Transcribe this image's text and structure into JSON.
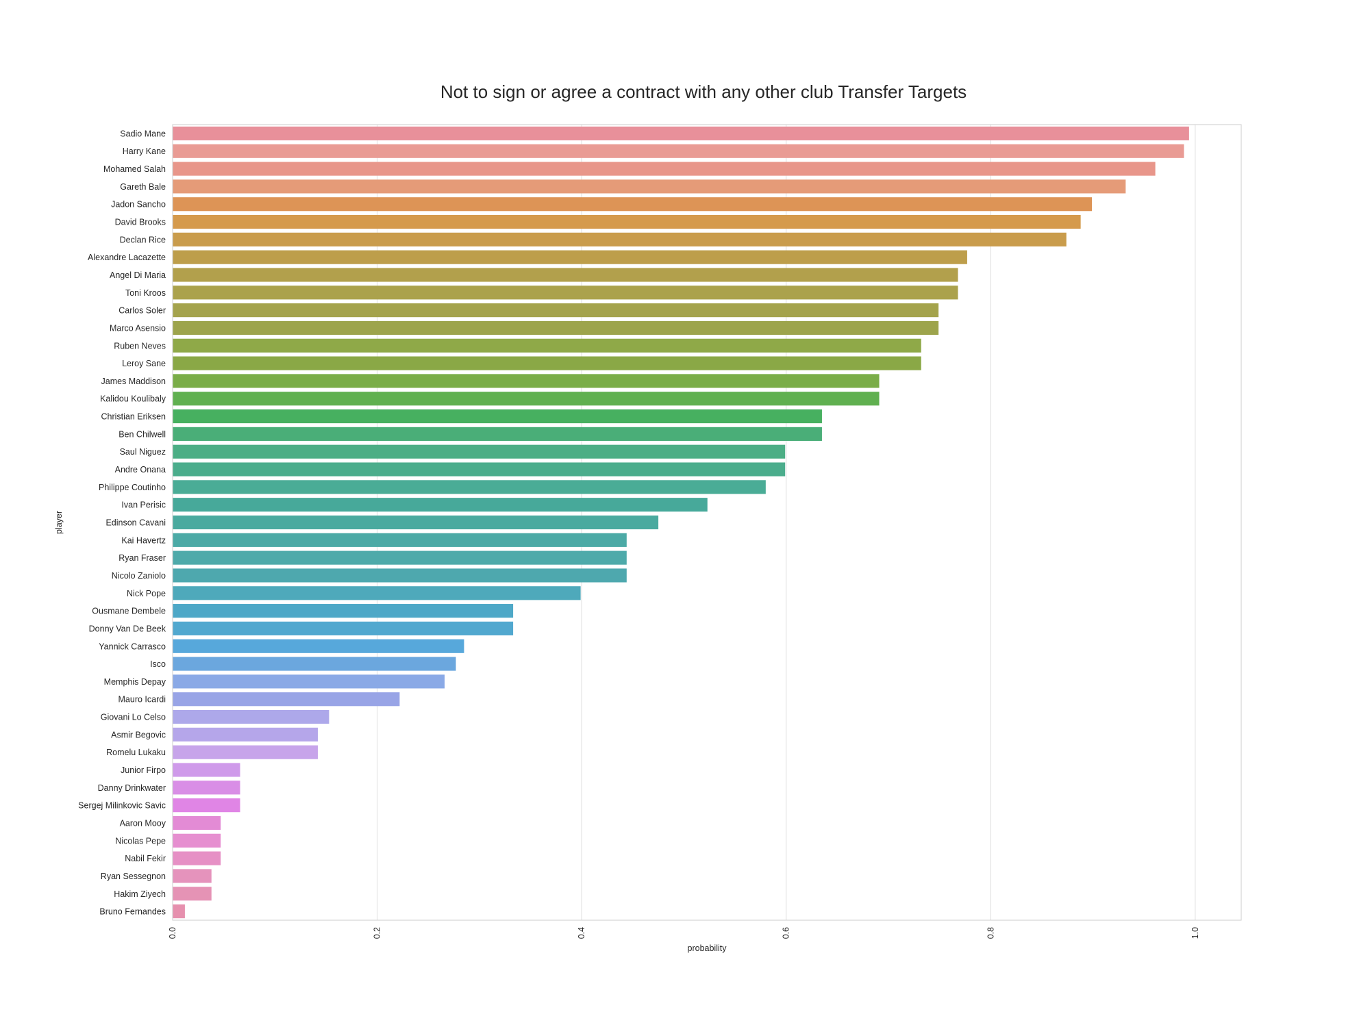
{
  "chart_data": {
    "type": "bar",
    "orientation": "horizontal",
    "title": "Not to sign or agree a contract with any other club Transfer Targets",
    "xlabel": "probability",
    "ylabel": "player",
    "xlim": [
      0,
      1.045
    ],
    "xticks": [
      "0.0",
      "0.2",
      "0.4",
      "0.6",
      "0.8",
      "1.0"
    ],
    "grid": true,
    "categories": [
      "Sadio Mane",
      "Harry Kane",
      "Mohamed Salah",
      "Gareth Bale",
      "Jadon Sancho",
      "David Brooks",
      "Declan Rice",
      "Alexandre Lacazette",
      "Angel Di Maria",
      "Toni Kroos",
      "Carlos Soler",
      "Marco Asensio",
      "Ruben Neves",
      "Leroy Sane",
      "James Maddison",
      "Kalidou Koulibaly",
      "Christian Eriksen",
      "Ben Chilwell",
      "Saul Niguez",
      "Andre Onana",
      "Philippe Coutinho",
      "Ivan Perisic",
      "Edinson Cavani",
      "Kai Havertz",
      "Ryan Fraser",
      "Nicolo Zaniolo",
      "Nick Pope",
      "Ousmane Dembele",
      "Donny Van De Beek",
      "Yannick Carrasco",
      "Isco",
      "Memphis Depay",
      "Mauro Icardi",
      "Giovani Lo Celso",
      "Asmir Begovic",
      "Romelu Lukaku",
      "Junior Firpo",
      "Danny Drinkwater",
      "Sergej Milinkovic Savic",
      "Aaron Mooy",
      "Nicolas Pepe",
      "Nabil Fekir",
      "Ryan Sessegnon",
      "Hakim Ziyech",
      "Bruno Fernandes"
    ],
    "values": [
      0.994,
      0.989,
      0.961,
      0.932,
      0.899,
      0.888,
      0.874,
      0.777,
      0.768,
      0.768,
      0.749,
      0.749,
      0.732,
      0.732,
      0.691,
      0.691,
      0.635,
      0.635,
      0.599,
      0.599,
      0.58,
      0.523,
      0.475,
      0.444,
      0.444,
      0.444,
      0.399,
      0.333,
      0.333,
      0.285,
      0.277,
      0.266,
      0.222,
      0.153,
      0.142,
      0.142,
      0.066,
      0.066,
      0.066,
      0.047,
      0.047,
      0.047,
      0.038,
      0.038,
      0.012
    ],
    "colors": [
      "#e8909a",
      "#e99b94",
      "#e8968a",
      "#e59b78",
      "#dd9456",
      "#d59a4c",
      "#c99c4c",
      "#bd9e4b",
      "#b2a04c",
      "#aba24c",
      "#a4a34c",
      "#9da44c",
      "#8fa948",
      "#8aa846",
      "#7aad48",
      "#60b050",
      "#47b060",
      "#4aae78",
      "#4cae85",
      "#4bad8c",
      "#4aac96",
      "#47a99a",
      "#4aaa9f",
      "#4caaa6",
      "#4eaaaa",
      "#4ea8ae",
      "#4ea9bb",
      "#4ea8c7",
      "#51a8cf",
      "#57a8db",
      "#6ba7de",
      "#8aa9e6",
      "#98a4e6",
      "#ada8ea",
      "#b5a6ea",
      "#c7a4ea",
      "#cf9aea",
      "#d98ee6",
      "#e085e5",
      "#e38bd5",
      "#e68fd0",
      "#e690c5",
      "#e593bc",
      "#e593b5",
      "#e690ae"
    ]
  }
}
